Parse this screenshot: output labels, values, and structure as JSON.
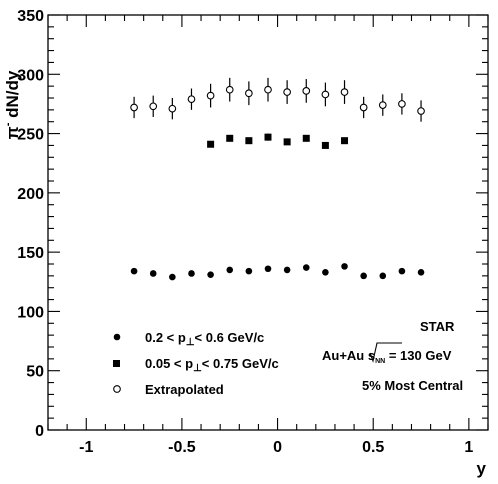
{
  "chart_data": {
    "type": "scatter",
    "xlabel": "y",
    "ylabel_main": "π",
    "ylabel_sup": "-",
    "ylabel_rest": " dN/dy",
    "xlim": [
      -1.2,
      1.1
    ],
    "ylim": [
      0,
      350
    ],
    "x_ticks": [
      -1,
      -0.5,
      0,
      0.5,
      1
    ],
    "x_tick_labels": [
      "-1",
      "-0.5",
      "0",
      "0.5",
      "1"
    ],
    "y_ticks": [
      0,
      50,
      100,
      150,
      200,
      250,
      300,
      350
    ],
    "y_tick_labels": [
      "0",
      "50",
      "100",
      "150",
      "200",
      "250",
      "300",
      "350"
    ],
    "grid": false,
    "legend_position": "bottom-left",
    "series": [
      {
        "marker": "filled-circle",
        "legend_parts": [
          "0.2 < p",
          "⊥",
          "< 0.6 GeV/c"
        ],
        "x": [
          -0.75,
          -0.65,
          -0.55,
          -0.45,
          -0.35,
          -0.25,
          -0.15,
          -0.05,
          0.05,
          0.15,
          0.25,
          0.35,
          0.45,
          0.55,
          0.65,
          0.75
        ],
        "y": [
          134,
          132,
          129,
          132,
          131,
          135,
          134,
          136,
          135,
          137,
          133,
          138,
          130,
          130,
          134,
          133
        ],
        "err": [
          2,
          2,
          2,
          2,
          2,
          2,
          2,
          2,
          2,
          2,
          2,
          2,
          2,
          2,
          2,
          2
        ]
      },
      {
        "marker": "filled-square",
        "legend_parts": [
          "0.05 < p",
          "⊥",
          "< 0.75 GeV/c"
        ],
        "x": [
          -0.35,
          -0.25,
          -0.15,
          -0.05,
          0.05,
          0.15,
          0.25,
          0.35
        ],
        "y": [
          241,
          246,
          244,
          247,
          243,
          246,
          240,
          244
        ],
        "err": [
          2,
          2,
          2,
          3,
          2,
          2,
          2,
          2
        ]
      },
      {
        "marker": "open-circle",
        "legend_parts": [
          "Extrapolated"
        ],
        "x": [
          -0.75,
          -0.65,
          -0.55,
          -0.45,
          -0.35,
          -0.25,
          -0.15,
          -0.05,
          0.05,
          0.15,
          0.25,
          0.35,
          0.45,
          0.55,
          0.65,
          0.75
        ],
        "y": [
          272,
          273,
          271,
          279,
          282,
          287,
          284,
          287,
          285,
          286,
          283,
          285,
          272,
          274,
          275,
          269
        ],
        "err": [
          9,
          9,
          9,
          9,
          10,
          10,
          10,
          10,
          10,
          10,
          10,
          10,
          9,
          9,
          9,
          9
        ]
      }
    ],
    "annotations": {
      "experiment": "STAR",
      "system_prefix": "Au+Au ",
      "sqrt_s": "s",
      "sqrt_sub": "NN",
      "system_suffix": " = 130 GeV",
      "centrality": "5% Most Central"
    }
  }
}
